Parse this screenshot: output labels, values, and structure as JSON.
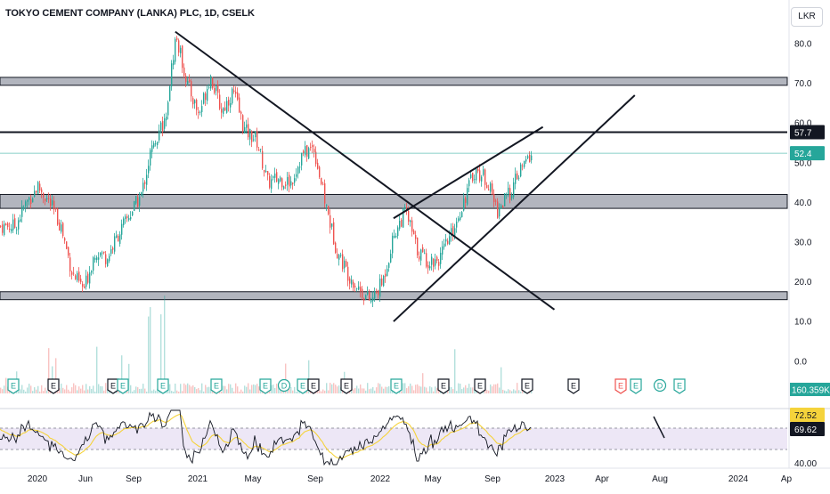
{
  "header": {
    "title": "TOKYO CEMENT COMPANY (LANKA) PLC, 1D, CSELK",
    "currency": "LKR"
  },
  "price_axis": {
    "ticks": [
      "80.0",
      "70.0",
      "60.0",
      "50.0",
      "40.0",
      "30.0",
      "20.0",
      "10.0",
      "0.0"
    ],
    "markers": {
      "level_line": "57.7",
      "last_price": "52.4",
      "volume": "160.359K"
    }
  },
  "rsi_axis": {
    "ticks": [
      "40.00"
    ],
    "markers": {
      "rsi_value": "72.52",
      "rsi_ma_value": "69.62"
    }
  },
  "time_axis": {
    "labels": [
      "2020",
      "Jun",
      "Sep",
      "2021",
      "May",
      "Sep",
      "2022",
      "May",
      "Sep",
      "2023",
      "Apr",
      "Aug",
      "2024",
      "Ap"
    ]
  },
  "events": [
    {
      "type": "E",
      "kind": "earnings"
    },
    {
      "type": "E",
      "kind": "earnings-plain"
    },
    {
      "type": "E",
      "kind": "earnings-plain"
    },
    {
      "type": "E",
      "kind": "earnings"
    },
    {
      "type": "E",
      "kind": "earnings"
    },
    {
      "type": "E",
      "kind": "earnings"
    },
    {
      "type": "E",
      "kind": "earnings"
    },
    {
      "type": "D",
      "kind": "dividend"
    },
    {
      "type": "E",
      "kind": "earnings"
    },
    {
      "type": "E",
      "kind": "earnings-plain"
    },
    {
      "type": "E",
      "kind": "earnings-plain"
    },
    {
      "type": "E",
      "kind": "earnings"
    },
    {
      "type": "E",
      "kind": "earnings-plain"
    },
    {
      "type": "E",
      "kind": "earnings-plain"
    },
    {
      "type": "E",
      "kind": "earnings-plain"
    },
    {
      "type": "E",
      "kind": "earnings-plain"
    },
    {
      "type": "E",
      "kind": "earnings-red"
    },
    {
      "type": "E",
      "kind": "earnings"
    },
    {
      "type": "D",
      "kind": "dividend"
    },
    {
      "type": "E",
      "kind": "earnings"
    },
    {
      "type": "E",
      "kind": "earnings-pink"
    },
    {
      "type": "S",
      "kind": "split"
    }
  ],
  "colors": {
    "up": "#26a69a",
    "down": "#ef5350",
    "zone": "#b2b5be",
    "rsi_line": "#131722",
    "rsi_ma": "#f5d33b",
    "rsi_band": "#ede7f6",
    "price_line": "#26a69a"
  },
  "chart_data": {
    "type": "candlestick",
    "symbol": "TOKYO CEMENT COMPANY (LANKA) PLC",
    "interval": "1D",
    "exchange": "CSELK",
    "currency": "LKR",
    "ylim": [
      0,
      85
    ],
    "last_price": 52.4,
    "horizontal_level": 57.7,
    "zones": [
      [
        15.5,
        17.5
      ],
      [
        38.5,
        42
      ],
      [
        69.5,
        71.5
      ]
    ],
    "trendlines": [
      {
        "from": [
          "2021-01",
          83
        ],
        "to": [
          "2023-10",
          13
        ]
      },
      {
        "from": [
          "2022-08",
          10
        ],
        "to": [
          "2024-05",
          67
        ]
      },
      {
        "from": [
          "2022-08",
          36
        ],
        "to": [
          "2023-09",
          59
        ]
      }
    ],
    "price_path": [
      [
        "2019-11",
        34
      ],
      [
        "2019-12",
        40
      ],
      [
        "2020-01",
        44
      ],
      [
        "2020-02",
        40
      ],
      [
        "2020-03",
        34
      ],
      [
        "2020-04",
        22
      ],
      [
        "2020-05",
        18
      ],
      [
        "2020-06",
        28
      ],
      [
        "2020-07",
        26
      ],
      [
        "2020-08",
        32
      ],
      [
        "2020-09",
        37
      ],
      [
        "2020-10",
        42
      ],
      [
        "2020-11",
        55
      ],
      [
        "2020-12",
        60
      ],
      [
        "2021-01",
        82
      ],
      [
        "2021-02",
        70
      ],
      [
        "2021-03",
        62
      ],
      [
        "2021-04",
        72
      ],
      [
        "2021-05",
        63
      ],
      [
        "2021-06",
        68
      ],
      [
        "2021-07",
        58
      ],
      [
        "2021-08",
        56
      ],
      [
        "2021-09",
        45
      ],
      [
        "2021-10",
        46
      ],
      [
        "2021-11",
        45
      ],
      [
        "2021-12",
        52
      ],
      [
        "2022-01",
        54
      ],
      [
        "2022-02",
        40
      ],
      [
        "2022-03",
        28
      ],
      [
        "2022-04",
        22
      ],
      [
        "2022-05",
        18
      ],
      [
        "2022-06",
        15
      ],
      [
        "2022-07",
        20
      ],
      [
        "2022-08",
        32
      ],
      [
        "2022-09",
        38
      ],
      [
        "2022-10",
        28
      ],
      [
        "2022-11",
        25
      ],
      [
        "2022-12",
        26
      ],
      [
        "2023-01",
        32
      ],
      [
        "2023-02",
        40
      ],
      [
        "2023-03",
        48
      ],
      [
        "2023-04",
        46
      ],
      [
        "2023-05",
        38
      ],
      [
        "2023-06",
        42
      ],
      [
        "2023-07",
        48
      ],
      [
        "2023-08",
        52.4
      ]
    ],
    "rsi": {
      "value": 72.52,
      "ma": 69.62,
      "levels": [
        30,
        50,
        70
      ]
    }
  }
}
